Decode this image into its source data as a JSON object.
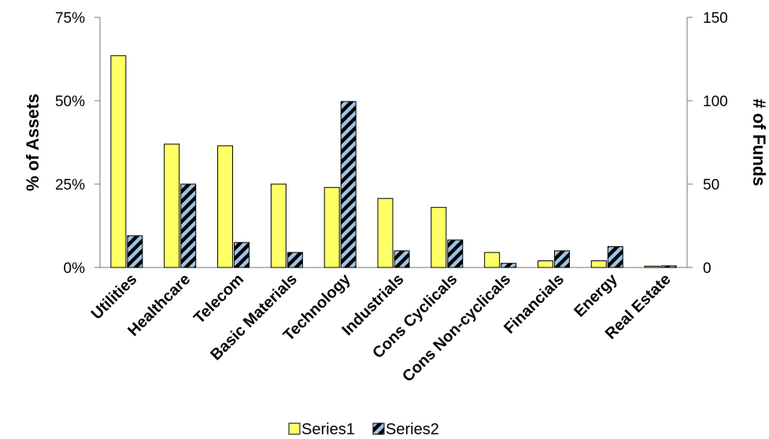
{
  "chart_data": {
    "type": "bar",
    "categories": [
      "Utilities",
      "Healthcare",
      "Telecom",
      "Basic Materials",
      "Technology",
      "Industrials",
      "Cons Cyclicals",
      "Cons Non-cyclicals",
      "Financials",
      "Energy",
      "Real Estate"
    ],
    "series": [
      {
        "name": "Series1",
        "axis": "left",
        "color": "#ffff66",
        "values": [
          63.5,
          37,
          36.5,
          25,
          24,
          20.7,
          18,
          4.5,
          2,
          2,
          0.4
        ]
      },
      {
        "name": "Series2",
        "axis": "right",
        "color": "#9dc3e6",
        "pattern": "diagonal-stripes-black",
        "values": [
          19,
          50,
          15,
          9,
          99.5,
          10,
          16.5,
          2.5,
          10,
          12.5,
          1
        ]
      }
    ],
    "ylabel": "% of Assets",
    "y2label": "# of Funds",
    "ylim": [
      0,
      75
    ],
    "y2lim": [
      0,
      150
    ],
    "yticks": [
      "0%",
      "25%",
      "50%",
      "75%"
    ],
    "y2ticks": [
      "0",
      "50",
      "100",
      "150"
    ],
    "grid": false,
    "legend": "bottom"
  }
}
